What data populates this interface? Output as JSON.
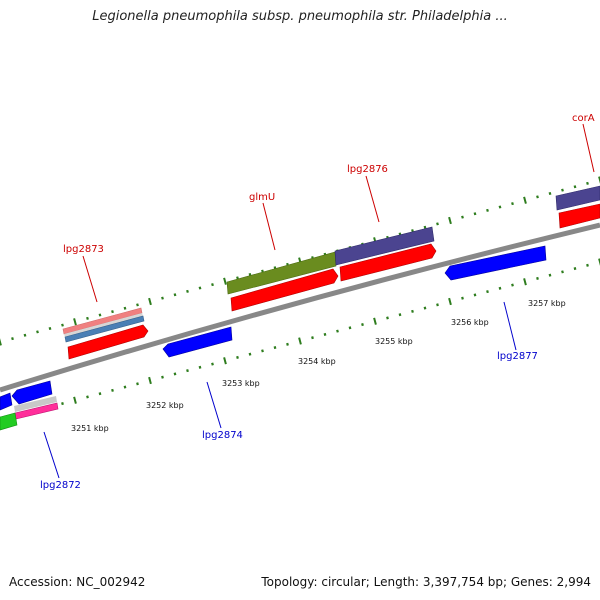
{
  "title": "Legionella pneumophila subsp. pneumophila str. Philadelphia ...",
  "footer": {
    "accession": "Accession: NC_002942",
    "stats": "Topology: circular; Length: 3,397,754 bp; Genes: 2,994"
  },
  "colors": {
    "backbone": "#888888",
    "ticks": "#2e7d1e",
    "label_red": "#cc0000",
    "label_blue": "#0000cc",
    "feature_red": "#ff0000",
    "feature_blue": "#0000ff",
    "feature_purple": "#4b4490",
    "feature_olive": "#6a8c1f",
    "feature_steelblue": "#4a7fb5",
    "feature_salmon": "#f08080",
    "feature_green": "#22cc22",
    "feature_pink": "#ff2e9a",
    "feature_gray": "#c8c8c8"
  },
  "scale_labels": [
    "3251 kbp",
    "3252 kbp",
    "3253 kbp",
    "3254 kbp",
    "3255 kbp",
    "3256 kbp",
    "3257 kbp"
  ],
  "gene_labels": [
    {
      "name": "lpg2873",
      "strand": "forward"
    },
    {
      "name": "glmU",
      "strand": "forward"
    },
    {
      "name": "lpg2876",
      "strand": "forward"
    },
    {
      "name": "corA",
      "strand": "forward"
    },
    {
      "name": "lpg2872",
      "strand": "reverse"
    },
    {
      "name": "lpg2874",
      "strand": "reverse"
    },
    {
      "name": "lpg2877",
      "strand": "reverse"
    }
  ]
}
